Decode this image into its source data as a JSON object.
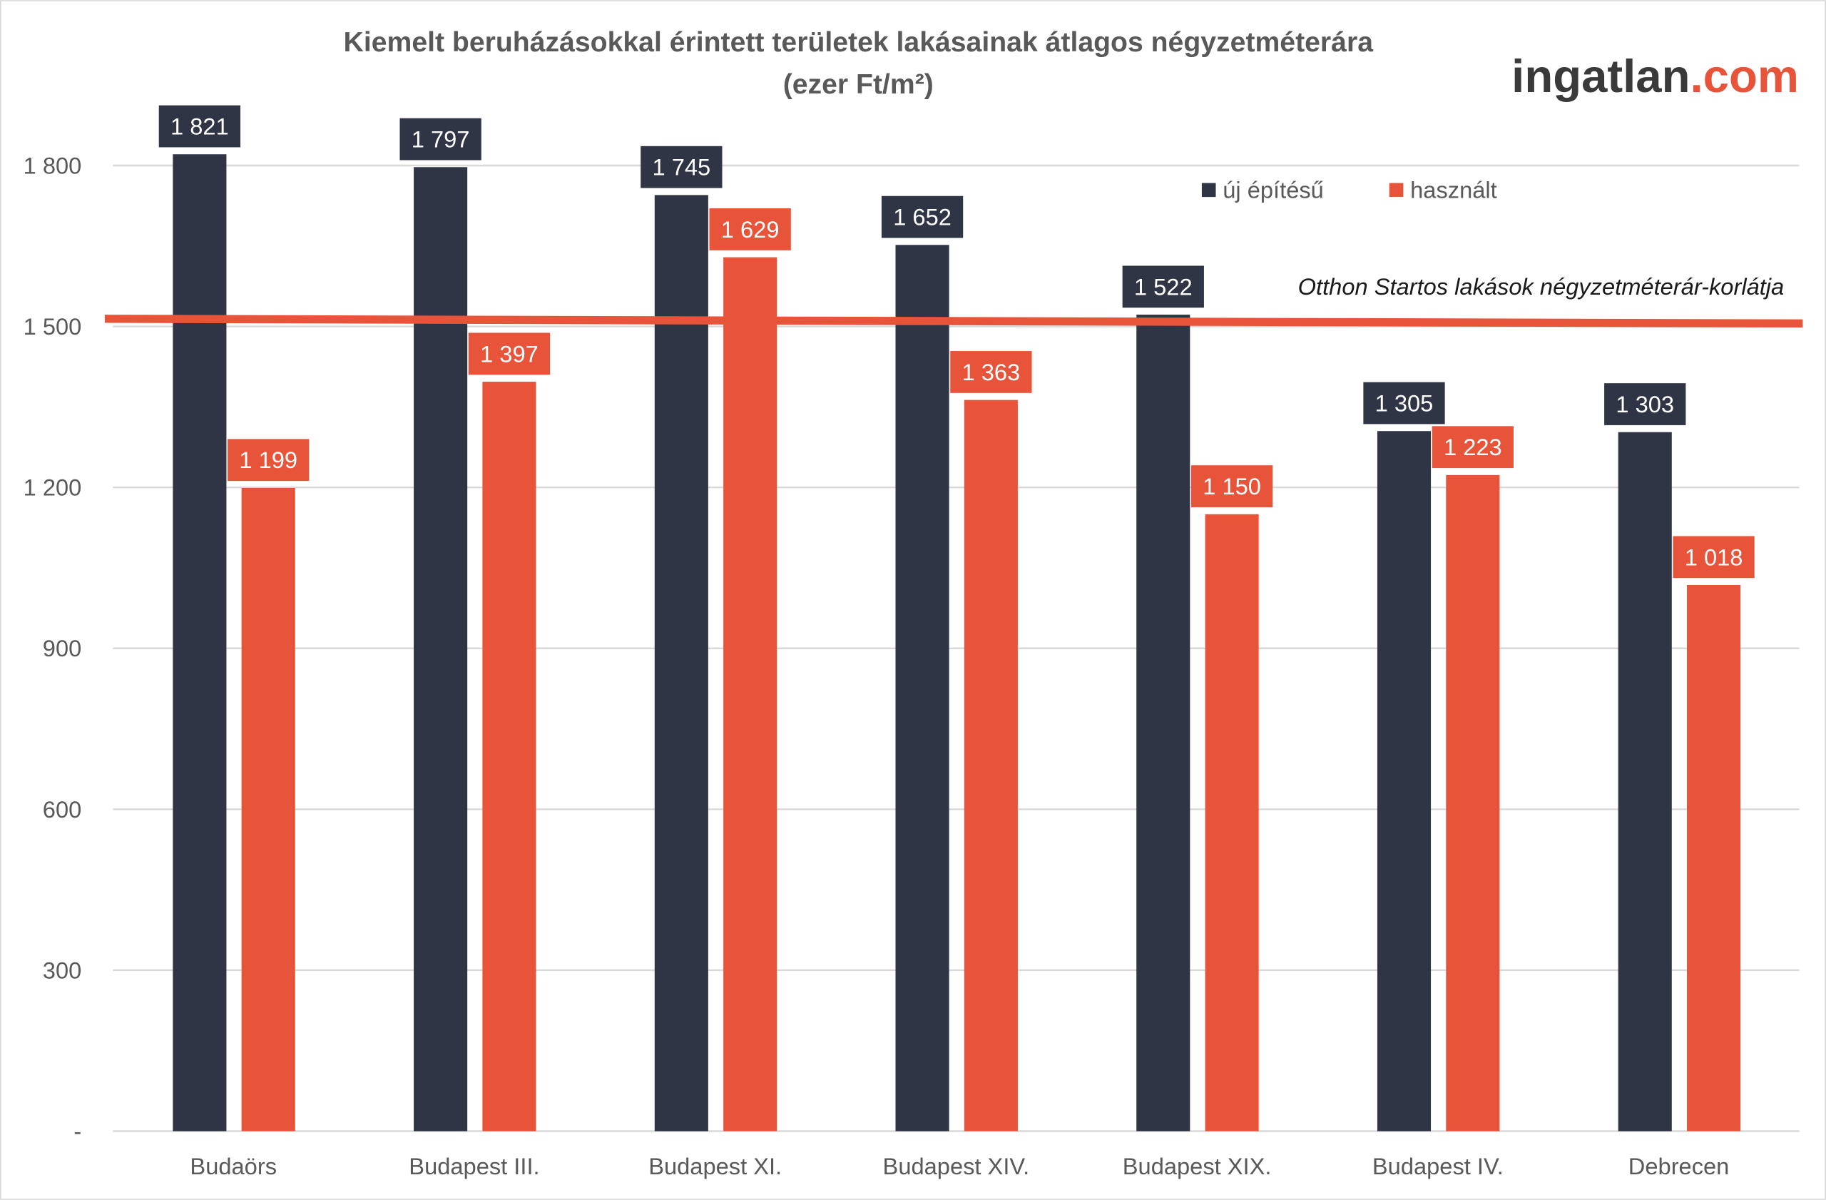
{
  "chart_data": {
    "type": "bar",
    "title": "Kiemelt beruházásokkal érintett területek lakásainak átlagos négyzetméterára",
    "subtitle": "(ezer Ft/m²)",
    "categories": [
      "Budaörs",
      "Budapest III.",
      "Budapest XI.",
      "Budapest XIV.",
      "Budapest XIX.",
      "Budapest IV.",
      "Debrecen"
    ],
    "series": [
      {
        "name": "új építésű",
        "color": "#2f3544",
        "values": [
          1821,
          1797,
          1745,
          1652,
          1522,
          1305,
          1303
        ],
        "labels": [
          "1 821",
          "1 797",
          "1 745",
          "1 652",
          "1 522",
          "1 305",
          "1 303"
        ]
      },
      {
        "name": "használt",
        "color": "#e8543a",
        "values": [
          1199,
          1397,
          1629,
          1363,
          1150,
          1223,
          1018
        ],
        "labels": [
          "1 199",
          "1 397",
          "1 629",
          "1 363",
          "1 150",
          "1 223",
          "1 018"
        ]
      }
    ],
    "reference_line": {
      "value": 1510,
      "label": "Otthon Startos lakások négyzetméterár-korlátja",
      "color": "#e8543a"
    },
    "ylim": [
      0,
      1800
    ],
    "yticks": [
      0,
      300,
      600,
      900,
      1200,
      1500,
      1800
    ],
    "ytick_labels": [
      "-",
      "300",
      "600",
      "900",
      "1 200",
      "1 500",
      "1 800"
    ],
    "grid": true,
    "legend": "top-right",
    "xlabel": "",
    "ylabel": ""
  },
  "logo": {
    "main": "ingatlan",
    "suffix": ".com",
    "main_color": "#3a3a3a",
    "suffix_color": "#e8543a"
  }
}
